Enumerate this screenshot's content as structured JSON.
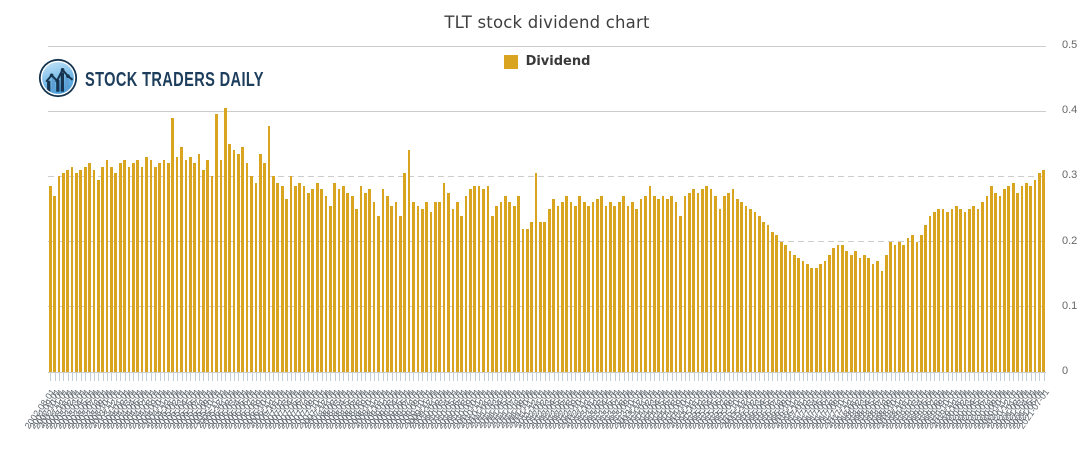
{
  "logo": {
    "text": "STOCK TRADERS DAILY"
  },
  "colors": {
    "bar": "#D9A521",
    "grid": "#cccccc",
    "tick": "#c3cfdb",
    "axis_label": "#666666",
    "x_label": "#60686f",
    "title": "#3f3f3f",
    "legend_text": "#3a3a3a",
    "logo_navy": "#1d3d5c",
    "logo_blue_light": "#c9e8fb",
    "logo_blue": "#4aa0dc"
  },
  "chart_data": {
    "type": "bar",
    "title": "TLT stock dividend chart",
    "legend_label": "Dividend",
    "legend_position": "top",
    "xlabel": "",
    "ylabel": "",
    "ylim": [
      0,
      0.5
    ],
    "y_ticks": [
      0,
      0.1,
      0.2,
      0.3,
      0.4,
      0.5
    ],
    "dashed_gridlines": [
      0.1,
      0.2,
      0.3
    ],
    "grid": true,
    "categories": [
      "2002-08-01",
      "2002-09-01",
      "2002-10-01",
      "2002-11-01",
      "2002-12-01",
      "2003-01-01",
      "2003-02-01",
      "2003-03-01",
      "2003-04-01",
      "2003-05-01",
      "2003-06-01",
      "2003-07-01",
      "2003-08-01",
      "2003-09-01",
      "2003-10-01",
      "2003-11-01",
      "2003-12-01",
      "2004-01-01",
      "2004-02-01",
      "2004-03-01",
      "2004-04-01",
      "2004-05-01",
      "2004-06-01",
      "2004-07-01",
      "2004-08-01",
      "2004-09-01",
      "2004-10-01",
      "2004-11-01",
      "2004-12-01",
      "2005-01-01",
      "2005-02-01",
      "2005-03-01",
      "2005-04-01",
      "2005-05-01",
      "2005-06-01",
      "2005-07-01",
      "2005-08-01",
      "2005-09-01",
      "2005-10-01",
      "2005-11-01",
      "2005-12-01",
      "2006-01-01",
      "2006-02-01",
      "2006-03-01",
      "2006-04-01",
      "2006-05-01",
      "2006-06-01",
      "2006-07-01",
      "2006-08-01",
      "2006-09-01",
      "2006-10-01",
      "2006-11-01",
      "2006-12-01",
      "2007-01-01",
      "2007-02-01",
      "2007-03-01",
      "2007-04-01",
      "2007-05-01",
      "2007-06-01",
      "2007-07-01",
      "2007-08-01",
      "2007-09-01",
      "2007-10-01",
      "2007-11-01",
      "2007-12-01",
      "2008-01-01",
      "2008-02-01",
      "2008-03-01",
      "2008-04-01",
      "2008-05-01",
      "2008-06-01",
      "2008-07-01",
      "2008-08-01",
      "2008-09-01",
      "2008-10-01",
      "2008-11-01",
      "2008-12-01",
      "2009-01-01",
      "2009-02-01",
      "2009-03-01",
      "2009-04-01",
      "2009-05-01",
      "2009-06-01",
      "2009-07-01",
      "2009-08-01",
      "2009-09-01",
      "2009-10-01",
      "2009-11-01",
      "2009-12-01",
      "2010-01-01",
      "2010-02-01",
      "2010-03-01",
      "2010-04-01",
      "2010-05-01",
      "2010-06-01",
      "2010-07-01",
      "2010-08-01",
      "2010-09-01",
      "2010-10-01",
      "2010-11-01",
      "2010-12-01",
      "2011-01-01",
      "2011-02-01",
      "2011-03-01",
      "2011-04-01",
      "2011-05-01",
      "2011-06-01",
      "2011-07-01",
      "2011-08-01",
      "2011-09-01",
      "2011-10-01",
      "2011-11-01",
      "2011-12-01",
      "2012-01-01",
      "2012-02-01",
      "2012-03-01",
      "2012-04-01",
      "2012-05-01",
      "2012-06-01",
      "2012-07-01",
      "2012-08-01",
      "2012-09-01",
      "2012-10-01",
      "2012-11-01",
      "2012-12-01",
      "2013-01-01",
      "2013-02-01",
      "2013-03-01",
      "2013-04-01",
      "2013-05-01",
      "2013-06-01",
      "2013-07-01",
      "2013-08-01",
      "2013-09-01",
      "2013-10-01",
      "2013-11-01",
      "2013-12-01",
      "2014-01-01",
      "2014-02-01",
      "2014-03-01",
      "2014-04-01",
      "2014-05-01",
      "2014-06-01",
      "2014-07-01",
      "2014-08-01",
      "2014-09-01",
      "2014-10-01",
      "2014-11-01",
      "2014-12-01",
      "2015-01-01",
      "2015-02-01",
      "2015-03-01",
      "2015-04-01",
      "2015-05-01",
      "2015-06-01",
      "2015-07-01",
      "2015-08-01",
      "2015-09-01",
      "2015-10-01",
      "2015-11-01",
      "2015-12-01",
      "2016-01-01",
      "2016-02-01",
      "2016-03-01",
      "2016-04-01",
      "2016-05-01",
      "2016-06-01",
      "2016-07-01",
      "2016-08-01",
      "2016-09-01",
      "2016-10-01",
      "2016-11-01",
      "2016-12-01",
      "2017-01-01",
      "2017-02-01",
      "2017-03-01",
      "2017-04-01",
      "2017-05-01",
      "2017-06-01",
      "2017-07-01",
      "2017-08-01",
      "2017-09-01",
      "2017-10-01",
      "2017-11-01",
      "2017-12-01",
      "2018-01-01",
      "2018-02-01",
      "2018-03-01",
      "2018-04-01",
      "2018-05-01",
      "2018-06-01",
      "2018-07-01",
      "2018-08-01",
      "2018-09-01",
      "2018-10-01",
      "2018-11-01",
      "2018-12-01",
      "2019-01-01",
      "2019-02-01",
      "2019-03-01",
      "2019-04-01",
      "2019-05-01",
      "2019-06-01",
      "2019-07-01",
      "2019-08-01",
      "2019-09-01",
      "2019-10-01",
      "2019-11-01",
      "2019-12-01",
      "2020-01-01",
      "2020-02-01",
      "2020-03-01",
      "2020-04-01",
      "2020-05-01",
      "2020-06-01",
      "2020-07-01",
      "2020-08-01",
      "2020-09-01",
      "2020-10-01",
      "2020-11-01",
      "2020-12-01",
      "2021-01-01",
      "2021-02-01",
      "2021-03-01",
      "2021-04-01",
      "2021-05-01",
      "2021-06-01",
      "2021-07-01"
    ],
    "values": [
      0.285,
      0.27,
      0.3,
      0.305,
      0.31,
      0.315,
      0.305,
      0.31,
      0.315,
      0.32,
      0.31,
      0.295,
      0.315,
      0.325,
      0.315,
      0.305,
      0.32,
      0.325,
      0.315,
      0.32,
      0.325,
      0.315,
      0.33,
      0.325,
      0.315,
      0.32,
      0.325,
      0.32,
      0.39,
      0.33,
      0.345,
      0.325,
      0.33,
      0.32,
      0.335,
      0.31,
      0.325,
      0.3,
      0.395,
      0.325,
      0.405,
      0.35,
      0.34,
      0.335,
      0.345,
      0.32,
      0.3,
      0.29,
      0.335,
      0.32,
      0.378,
      0.3,
      0.29,
      0.285,
      0.265,
      0.3,
      0.285,
      0.29,
      0.285,
      0.275,
      0.28,
      0.29,
      0.28,
      0.27,
      0.255,
      0.29,
      0.28,
      0.285,
      0.275,
      0.27,
      0.25,
      0.285,
      0.275,
      0.28,
      0.26,
      0.24,
      0.28,
      0.27,
      0.255,
      0.26,
      0.24,
      0.305,
      0.34,
      0.26,
      0.255,
      0.25,
      0.26,
      0.245,
      0.26,
      0.26,
      0.29,
      0.275,
      0.25,
      0.26,
      0.24,
      0.27,
      0.28,
      0.285,
      0.285,
      0.28,
      0.285,
      0.24,
      0.255,
      0.26,
      0.27,
      0.26,
      0.255,
      0.27,
      0.22,
      0.22,
      0.23,
      0.305,
      0.23,
      0.23,
      0.25,
      0.265,
      0.255,
      0.26,
      0.27,
      0.26,
      0.255,
      0.27,
      0.26,
      0.255,
      0.26,
      0.265,
      0.27,
      0.255,
      0.26,
      0.255,
      0.26,
      0.27,
      0.255,
      0.26,
      0.25,
      0.265,
      0.27,
      0.285,
      0.27,
      0.265,
      0.27,
      0.265,
      0.27,
      0.26,
      0.24,
      0.27,
      0.275,
      0.28,
      0.275,
      0.28,
      0.285,
      0.28,
      0.27,
      0.25,
      0.27,
      0.275,
      0.28,
      0.265,
      0.26,
      0.255,
      0.25,
      0.245,
      0.24,
      0.23,
      0.225,
      0.215,
      0.21,
      0.2,
      0.195,
      0.185,
      0.18,
      0.175,
      0.17,
      0.165,
      0.16,
      0.16,
      0.165,
      0.17,
      0.18,
      0.19,
      0.195,
      0.195,
      0.185,
      0.18,
      0.185,
      0.175,
      0.18,
      0.175,
      0.165,
      0.17,
      0.155,
      0.18,
      0.2,
      0.195,
      0.2,
      0.195,
      0.205,
      0.21,
      0.2,
      0.21,
      0.225,
      0.24,
      0.245,
      0.25,
      0.25,
      0.245,
      0.25,
      0.255,
      0.25,
      0.245,
      0.25,
      0.255,
      0.25,
      0.26,
      0.27,
      0.285,
      0.275,
      0.27,
      0.28,
      0.285,
      0.29,
      0.275,
      0.285,
      0.29,
      0.285,
      0.295,
      0.305,
      0.31
    ]
  }
}
